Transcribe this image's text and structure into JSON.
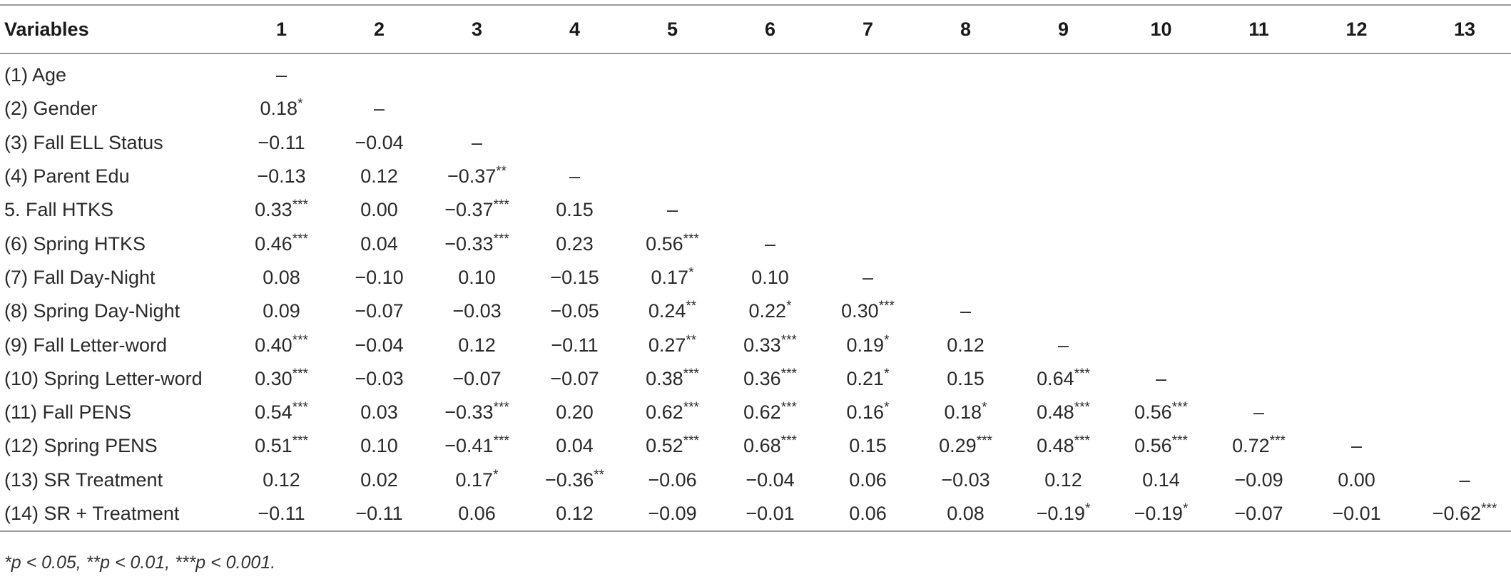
{
  "table": {
    "header_label": "Variables",
    "columns": [
      "1",
      "2",
      "3",
      "4",
      "5",
      "6",
      "7",
      "8",
      "9",
      "10",
      "11",
      "12",
      "13"
    ],
    "rows": [
      {
        "label": "(1) Age",
        "cells": [
          [
            "–",
            ""
          ]
        ]
      },
      {
        "label": "(2) Gender",
        "cells": [
          [
            "0.18",
            "*"
          ],
          [
            "–",
            ""
          ]
        ]
      },
      {
        "label": "(3) Fall ELL Status",
        "cells": [
          [
            "−0.11",
            ""
          ],
          [
            "−0.04",
            ""
          ],
          [
            "–",
            ""
          ]
        ]
      },
      {
        "label": "(4) Parent Edu",
        "cells": [
          [
            "−0.13",
            ""
          ],
          [
            "0.12",
            ""
          ],
          [
            "−0.37",
            "**"
          ],
          [
            "–",
            ""
          ]
        ]
      },
      {
        "label": "5. Fall HTKS",
        "cells": [
          [
            "0.33",
            "***"
          ],
          [
            "0.00",
            ""
          ],
          [
            "−0.37",
            "***"
          ],
          [
            "0.15",
            ""
          ],
          [
            "–",
            ""
          ]
        ]
      },
      {
        "label": "(6) Spring HTKS",
        "cells": [
          [
            "0.46",
            "***"
          ],
          [
            "0.04",
            ""
          ],
          [
            "−0.33",
            "***"
          ],
          [
            "0.23",
            ""
          ],
          [
            "0.56",
            "***"
          ],
          [
            "–",
            ""
          ]
        ]
      },
      {
        "label": "(7) Fall Day-Night",
        "cells": [
          [
            "0.08",
            ""
          ],
          [
            "−0.10",
            ""
          ],
          [
            "0.10",
            ""
          ],
          [
            "−0.15",
            ""
          ],
          [
            "0.17",
            "*"
          ],
          [
            "0.10",
            ""
          ],
          [
            "–",
            ""
          ]
        ]
      },
      {
        "label": "(8) Spring Day-Night",
        "cells": [
          [
            "0.09",
            ""
          ],
          [
            "−0.07",
            ""
          ],
          [
            "−0.03",
            ""
          ],
          [
            "−0.05",
            ""
          ],
          [
            "0.24",
            "**"
          ],
          [
            "0.22",
            "*"
          ],
          [
            "0.30",
            "***"
          ],
          [
            "–",
            ""
          ]
        ]
      },
      {
        "label": "(9) Fall Letter-word",
        "cells": [
          [
            "0.40",
            "***"
          ],
          [
            "−0.04",
            ""
          ],
          [
            "0.12",
            ""
          ],
          [
            "−0.11",
            ""
          ],
          [
            "0.27",
            "**"
          ],
          [
            "0.33",
            "***"
          ],
          [
            "0.19",
            "*"
          ],
          [
            "0.12",
            ""
          ],
          [
            "–",
            ""
          ]
        ]
      },
      {
        "label": "(10) Spring Letter-word",
        "cells": [
          [
            "0.30",
            "***"
          ],
          [
            "−0.03",
            ""
          ],
          [
            "−0.07",
            ""
          ],
          [
            "−0.07",
            ""
          ],
          [
            "0.38",
            "***"
          ],
          [
            "0.36",
            "***"
          ],
          [
            "0.21",
            "*"
          ],
          [
            "0.15",
            ""
          ],
          [
            "0.64",
            "***"
          ],
          [
            "–",
            ""
          ]
        ]
      },
      {
        "label": "(11) Fall PENS",
        "cells": [
          [
            "0.54",
            "***"
          ],
          [
            "0.03",
            ""
          ],
          [
            "−0.33",
            "***"
          ],
          [
            "0.20",
            ""
          ],
          [
            "0.62",
            "***"
          ],
          [
            "0.62",
            "***"
          ],
          [
            "0.16",
            "*"
          ],
          [
            "0.18",
            "*"
          ],
          [
            "0.48",
            "***"
          ],
          [
            "0.56",
            "***"
          ],
          [
            "–",
            ""
          ]
        ]
      },
      {
        "label": "(12) Spring PENS",
        "cells": [
          [
            "0.51",
            "***"
          ],
          [
            "0.10",
            ""
          ],
          [
            "−0.41",
            "***"
          ],
          [
            "0.04",
            ""
          ],
          [
            "0.52",
            "***"
          ],
          [
            "0.68",
            "***"
          ],
          [
            "0.15",
            ""
          ],
          [
            "0.29",
            "***"
          ],
          [
            "0.48",
            "***"
          ],
          [
            "0.56",
            "***"
          ],
          [
            "0.72",
            "***"
          ],
          [
            "–",
            ""
          ]
        ]
      },
      {
        "label": "(13) SR Treatment",
        "cells": [
          [
            "0.12",
            ""
          ],
          [
            "0.02",
            ""
          ],
          [
            "0.17",
            "*"
          ],
          [
            "−0.36",
            "**"
          ],
          [
            "−0.06",
            ""
          ],
          [
            "−0.04",
            ""
          ],
          [
            "0.06",
            ""
          ],
          [
            "−0.03",
            ""
          ],
          [
            "0.12",
            ""
          ],
          [
            "0.14",
            ""
          ],
          [
            "−0.09",
            ""
          ],
          [
            "0.00",
            ""
          ],
          [
            "–",
            ""
          ]
        ]
      },
      {
        "label": "(14) SR + Treatment",
        "cells": [
          [
            "−0.11",
            ""
          ],
          [
            "−0.11",
            ""
          ],
          [
            "0.06",
            ""
          ],
          [
            "0.12",
            ""
          ],
          [
            "−0.09",
            ""
          ],
          [
            "−0.01",
            ""
          ],
          [
            "0.06",
            ""
          ],
          [
            "0.08",
            ""
          ],
          [
            "−0.19",
            "*"
          ],
          [
            "−0.19",
            "*"
          ],
          [
            "−0.07",
            ""
          ],
          [
            "−0.01",
            ""
          ],
          [
            "−0.62",
            "***"
          ]
        ]
      }
    ]
  },
  "footnote": "*p < 0.05, **p < 0.01, ***p < 0.001."
}
